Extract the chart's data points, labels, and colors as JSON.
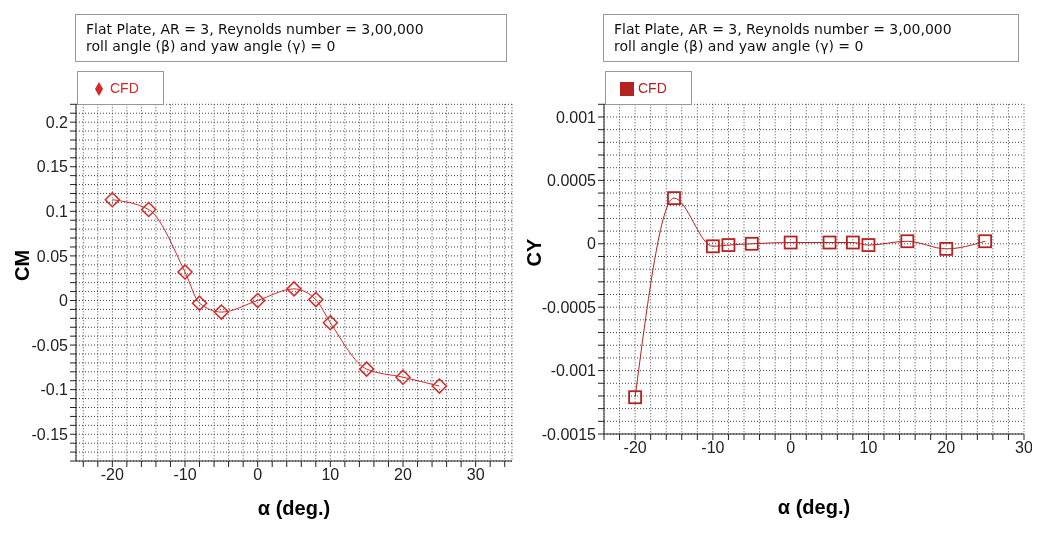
{
  "chart_data": [
    {
      "type": "line",
      "title": "Flat Plate, AR = 3, Reynolds number = 3,00,000",
      "subtitle": "roll angle (β) and yaw angle (γ) = 0",
      "xlabel": "α (deg.)",
      "ylabel": "CM",
      "x": [
        -20,
        -15,
        -10,
        -8,
        -5,
        0,
        5,
        8,
        10,
        15,
        20,
        25
      ],
      "series": [
        {
          "name": "CFD",
          "color": "#d42a2a",
          "values": [
            0.113,
            0.102,
            0.032,
            -0.003,
            -0.013,
            0,
            0.013,
            0.001,
            -0.025,
            -0.077,
            -0.086,
            -0.096
          ]
        }
      ],
      "xlim": [
        -25,
        35
      ],
      "xticks": [
        {
          "value": -24,
          "label": null
        },
        {
          "value": -22,
          "label": null
        },
        -20,
        {
          "value": -18,
          "label": null
        },
        {
          "value": -16,
          "label": null
        },
        {
          "value": -14,
          "label": null
        },
        {
          "value": -12,
          "label": null
        },
        -10,
        {
          "value": -8,
          "label": null
        },
        {
          "value": -6,
          "label": null
        },
        {
          "value": -4,
          "label": null
        },
        {
          "value": -2,
          "label": null
        },
        0,
        {
          "value": 2,
          "label": null
        },
        {
          "value": 4,
          "label": null
        },
        {
          "value": 6,
          "label": null
        },
        {
          "value": 8,
          "label": null
        },
        10,
        {
          "value": 12,
          "label": null
        },
        {
          "value": 14,
          "label": null
        },
        {
          "value": 16,
          "label": null
        },
        {
          "value": 18,
          "label": null
        },
        20,
        {
          "value": 22,
          "label": null
        },
        {
          "value": 24,
          "label": null
        },
        {
          "value": 26,
          "label": null
        },
        {
          "value": 28,
          "label": null
        },
        30,
        {
          "value": 32,
          "label": null
        },
        {
          "value": 34,
          "label": null
        }
      ],
      "ylim": [
        -0.18,
        0.22
      ],
      "yticks": [
        {
          "value": -0.18,
          "label": null
        },
        {
          "value": -0.17,
          "label": null
        },
        {
          "value": -0.16,
          "label": null
        },
        -0.15,
        {
          "value": -0.14,
          "label": null
        },
        {
          "value": -0.13,
          "label": null
        },
        {
          "value": -0.12,
          "label": null
        },
        {
          "value": -0.11,
          "label": null
        },
        -0.1,
        {
          "value": -0.09,
          "label": null
        },
        {
          "value": -0.08,
          "label": null
        },
        {
          "value": -0.07,
          "label": null
        },
        {
          "value": -0.06,
          "label": null
        },
        -0.05,
        {
          "value": -0.04,
          "label": null
        },
        {
          "value": -0.03,
          "label": null
        },
        {
          "value": -0.02,
          "label": null
        },
        {
          "value": -0.01,
          "label": null
        },
        0,
        {
          "value": 0.01,
          "label": null
        },
        {
          "value": 0.02,
          "label": null
        },
        {
          "value": 0.03,
          "label": null
        },
        {
          "value": 0.04,
          "label": null
        },
        0.05,
        {
          "value": 0.06,
          "label": null
        },
        {
          "value": 0.07,
          "label": null
        },
        {
          "value": 0.08,
          "label": null
        },
        {
          "value": 0.09,
          "label": null
        },
        0.1,
        {
          "value": 0.11,
          "label": null
        },
        {
          "value": 0.12,
          "label": null
        },
        {
          "value": 0.13,
          "label": null
        },
        {
          "value": 0.14,
          "label": null
        },
        0.15,
        {
          "value": 0.16,
          "label": null
        },
        {
          "value": 0.17,
          "label": null
        },
        {
          "value": 0.18,
          "label": null
        },
        {
          "value": 0.19,
          "label": null
        },
        0.2,
        {
          "value": 0.21,
          "label": null
        },
        {
          "value": 0.22,
          "label": null
        }
      ],
      "grid": true,
      "legend": "top left",
      "marker": "diamond",
      "line_style": "solid"
    },
    {
      "type": "line",
      "title": "Flat Plate, AR = 3, Reynolds number = 3,00,000",
      "subtitle": "roll angle (β) and yaw angle (γ) = 0",
      "xlabel": "α (deg.)",
      "ylabel": "CY",
      "x": [
        -20,
        -15,
        -10,
        -8,
        -5,
        0,
        5,
        8,
        10,
        15,
        20,
        25
      ],
      "series": [
        {
          "name": "CFD",
          "color": "#b52222",
          "values": [
            -0.00121,
            0.00036,
            -2e-05,
            -1e-05,
            0,
            1e-05,
            1e-05,
            1e-05,
            -1e-05,
            2e-05,
            -4e-05,
            2e-05
          ]
        }
      ],
      "xlim": [
        -24,
        30
      ],
      "xticks": [
        {
          "value": -24,
          "label": null
        },
        {
          "value": -22,
          "label": null
        },
        -20,
        {
          "value": -18,
          "label": null
        },
        {
          "value": -16,
          "label": null
        },
        {
          "value": -14,
          "label": null
        },
        {
          "value": -12,
          "label": null
        },
        -10,
        {
          "value": -8,
          "label": null
        },
        {
          "value": -6,
          "label": null
        },
        {
          "value": -4,
          "label": null
        },
        {
          "value": -2,
          "label": null
        },
        0,
        {
          "value": 2,
          "label": null
        },
        {
          "value": 4,
          "label": null
        },
        {
          "value": 6,
          "label": null
        },
        {
          "value": 8,
          "label": null
        },
        10,
        {
          "value": 12,
          "label": null
        },
        {
          "value": 14,
          "label": null
        },
        {
          "value": 16,
          "label": null
        },
        {
          "value": 18,
          "label": null
        },
        20,
        {
          "value": 22,
          "label": null
        },
        {
          "value": 24,
          "label": null
        },
        {
          "value": 26,
          "label": null
        },
        {
          "value": 28,
          "label": null
        },
        30
      ],
      "ylim": [
        -0.0015,
        0.0011
      ],
      "yticks": [
        -0.0015,
        {
          "value": -0.0014,
          "label": null
        },
        {
          "value": -0.0013,
          "label": null
        },
        {
          "value": -0.0012,
          "label": null
        },
        {
          "value": -0.0011,
          "label": null
        },
        -0.001,
        {
          "value": -0.0009,
          "label": null
        },
        {
          "value": -0.0008,
          "label": null
        },
        {
          "value": -0.0007,
          "label": null
        },
        {
          "value": -0.0006,
          "label": null
        },
        -0.0005,
        {
          "value": -0.0004,
          "label": null
        },
        {
          "value": -0.0003,
          "label": null
        },
        {
          "value": -0.0002,
          "label": null
        },
        {
          "value": -0.0001,
          "label": null
        },
        0,
        {
          "value": 0.0001,
          "label": null
        },
        {
          "value": 0.0002,
          "label": null
        },
        {
          "value": 0.0003,
          "label": null
        },
        {
          "value": 0.0004,
          "label": null
        },
        0.0005,
        {
          "value": 0.0006,
          "label": null
        },
        {
          "value": 0.0007,
          "label": null
        },
        {
          "value": 0.0008,
          "label": null
        },
        {
          "value": 0.0009,
          "label": null
        },
        0.001,
        {
          "value": 0.0011,
          "label": null
        }
      ],
      "grid": true,
      "legend": "top left",
      "marker": "square",
      "line_style": "solid"
    }
  ]
}
